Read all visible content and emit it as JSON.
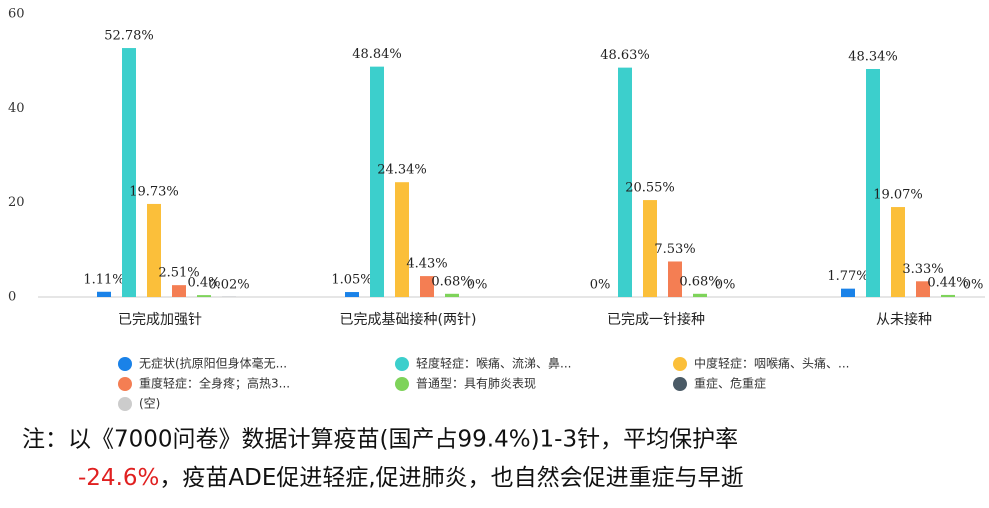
{
  "chart_data": {
    "type": "bar",
    "categories": [
      "已完成加强针",
      "已完成基础接种(两针)",
      "已完成一针接种",
      "从未接种"
    ],
    "ylim": [
      0,
      60
    ],
    "yticks": [
      0,
      20,
      40,
      60
    ],
    "series": [
      {
        "name": "无症状(抗原阳但身体毫无...",
        "color": "#1a82e8",
        "values": [
          1.11,
          1.05,
          0,
          1.77
        ],
        "value_labels": [
          "1.11%",
          "1.05%",
          "0%",
          "1.77%"
        ]
      },
      {
        "name": "轻度轻症：喉痛、流涕、鼻...",
        "color": "#3ccfcc",
        "values": [
          52.78,
          48.84,
          48.63,
          48.34
        ],
        "value_labels": [
          "52.78%",
          "48.84%",
          "48.63%",
          "48.34%"
        ]
      },
      {
        "name": "中度轻症：咽喉痛、头痛、...",
        "color": "#fbbf3a",
        "values": [
          19.73,
          24.34,
          20.55,
          19.07
        ],
        "value_labels": [
          "19.73%",
          "24.34%",
          "20.55%",
          "19.07%"
        ]
      },
      {
        "name": "重度轻症：全身疼；高热3...",
        "color": "#f47e53",
        "values": [
          2.51,
          4.43,
          7.53,
          3.33
        ],
        "value_labels": [
          "2.51%",
          "4.43%",
          "7.53%",
          "3.33%"
        ]
      },
      {
        "name": "普通型：具有肺炎表现",
        "color": "#7ed35a",
        "values": [
          0.4,
          0.68,
          0.68,
          0.44
        ],
        "value_labels": [
          "0.4%",
          "0.68%",
          "0.68%",
          "0.44%"
        ]
      },
      {
        "name": "重症、危重症",
        "color": "#4a5a66",
        "values": [
          0.02,
          0,
          0,
          0
        ],
        "value_labels": [
          "0.02%",
          "0%",
          "0%",
          "0%"
        ]
      },
      {
        "name": "(空)",
        "color": "#cccccc",
        "values": [
          null,
          null,
          null,
          null
        ],
        "value_labels": [
          null,
          null,
          null,
          null
        ]
      }
    ]
  },
  "note": {
    "line1": "注：以《7000问卷》数据计算疫苗(国产占99.4%)1-3针，平均保护率",
    "highlight": "-24.6%",
    "line2": "，疫苗ADE促进轻症,促进肺炎，也自然会促进重症与早逝"
  }
}
